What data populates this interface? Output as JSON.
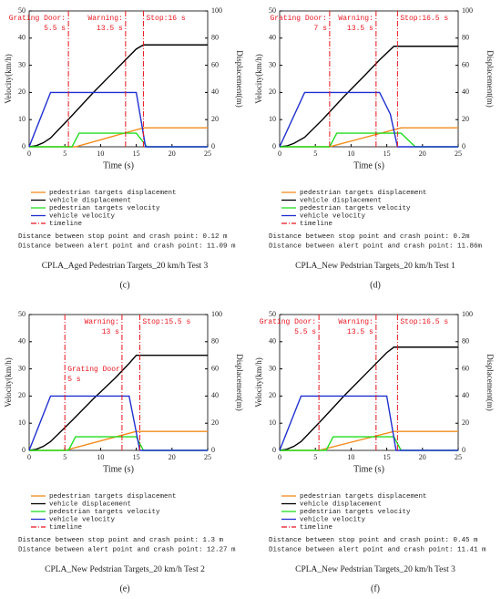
{
  "chart_data": [
    {
      "type": "line",
      "caption": "CPLA_Aged Pedestrian Targets_20 km/h Test 3",
      "label": "(c)",
      "xlabel": "Time (s)",
      "ylabel": "Velocity(km/h)",
      "y2label": "Displacement(m)",
      "xlim": [
        0,
        25
      ],
      "xticks": [
        0,
        5,
        10,
        15,
        20,
        25
      ],
      "ylim": [
        0,
        50
      ],
      "yticks": [
        0,
        10,
        20,
        30,
        40,
        50
      ],
      "y2lim": [
        0,
        100
      ],
      "y2ticks": [
        0,
        20,
        40,
        60,
        80,
        100
      ],
      "series": [
        {
          "name": "pedestrian targets displacement",
          "color": "#f28c1c",
          "axis": "y2",
          "x": [
            0,
            6.5,
            16,
            25
          ],
          "values": [
            0,
            0,
            14,
            14
          ]
        },
        {
          "name": "vehicle displacement",
          "color": "#000000",
          "axis": "y2",
          "x": [
            0,
            1,
            2,
            3,
            6,
            9,
            12,
            15,
            16,
            25
          ],
          "values": [
            0,
            0.8,
            3,
            6.5,
            23,
            40,
            56,
            72,
            75,
            75
          ]
        },
        {
          "name": "pedestrian targets velocity",
          "color": "#22dd22",
          "axis": "y",
          "x": [
            0,
            6,
            7,
            15,
            16.5,
            25
          ],
          "values": [
            0,
            0,
            5,
            5,
            0,
            0
          ]
        },
        {
          "name": "vehicle velocity",
          "color": "#1f2fd0",
          "axis": "y",
          "x": [
            0,
            3,
            15,
            16.3,
            25
          ],
          "values": [
            0,
            20,
            20,
            0,
            0
          ]
        }
      ],
      "timeline": {
        "name": "timeline",
        "color": "#e8141e",
        "values": [
          5.5,
          13.5,
          16
        ]
      },
      "annotations": [
        {
          "lines": [
            "Grating Door:",
            "5.5 s"
          ]
        },
        {
          "lines": [
            "Warning:",
            "13.5 s"
          ]
        },
        {
          "lines": [
            "Stop:16 s"
          ]
        }
      ],
      "notes": [
        "Distance between stop point and crash point: 0.12 m",
        "Distance between alert point and crash point: 11.09 m"
      ]
    },
    {
      "type": "line",
      "caption": "CPLA_New Pedstrian Targets_20 km/h Test 1",
      "label": "(d)",
      "xlabel": "Time (s)",
      "ylabel": "Velocity(km/h)",
      "y2label": "Displacement(m)",
      "xlim": [
        0,
        25
      ],
      "xticks": [
        0,
        5,
        10,
        15,
        20,
        25
      ],
      "ylim": [
        0,
        50
      ],
      "yticks": [
        0,
        10,
        20,
        30,
        40,
        50
      ],
      "y2lim": [
        0,
        100
      ],
      "y2ticks": [
        0,
        20,
        40,
        60,
        80,
        100
      ],
      "series": [
        {
          "name": "pedestrian targets displacement",
          "color": "#f28c1c",
          "axis": "y2",
          "x": [
            0,
            7,
            17,
            25
          ],
          "values": [
            0,
            0,
            14,
            14
          ]
        },
        {
          "name": "vehicle displacement",
          "color": "#000000",
          "axis": "y2",
          "x": [
            0,
            1,
            2,
            3.5,
            6,
            9,
            12,
            14,
            16,
            25
          ],
          "values": [
            0,
            0.6,
            2.5,
            7,
            20,
            37,
            53,
            64,
            74,
            74
          ]
        },
        {
          "name": "pedestrian targets velocity",
          "color": "#22dd22",
          "axis": "y",
          "x": [
            0,
            7,
            8,
            17,
            19,
            25
          ],
          "values": [
            0,
            0,
            5,
            5,
            0,
            0
          ]
        },
        {
          "name": "vehicle velocity",
          "color": "#1f2fd0",
          "axis": "y",
          "x": [
            0,
            3.5,
            14,
            15.5,
            16.5,
            25
          ],
          "values": [
            0,
            20,
            20,
            12,
            0,
            0
          ]
        }
      ],
      "timeline": {
        "name": "timeline",
        "color": "#e8141e",
        "values": [
          7,
          13.5,
          16.5
        ]
      },
      "annotations": [
        {
          "lines": [
            "Grating Door:",
            "7 s"
          ]
        },
        {
          "lines": [
            "Warning:",
            "13.5 s"
          ]
        },
        {
          "lines": [
            "Stop:16.5 s"
          ]
        }
      ],
      "notes": [
        "Distance between stop point and crash point: 0.2m",
        "Distance between alert point and crash point: 11.86m"
      ]
    },
    {
      "type": "line",
      "caption": "CPLA_New Pedstrian Targets_20 km/h Test 2",
      "label": "(e)",
      "xlabel": "Time (s)",
      "ylabel": "Velocity(km/h)",
      "y2label": "Displacement(m)",
      "xlim": [
        0,
        25
      ],
      "xticks": [
        0,
        5,
        10,
        15,
        20,
        25
      ],
      "ylim": [
        0,
        50
      ],
      "yticks": [
        0,
        10,
        20,
        30,
        40,
        50
      ],
      "y2lim": [
        0,
        100
      ],
      "y2ticks": [
        0,
        20,
        40,
        60,
        80,
        100
      ],
      "series": [
        {
          "name": "pedestrian targets displacement",
          "color": "#f28c1c",
          "axis": "y2",
          "x": [
            0,
            5,
            15,
            25
          ],
          "values": [
            0,
            0,
            14,
            14
          ]
        },
        {
          "name": "vehicle displacement",
          "color": "#000000",
          "axis": "y2",
          "x": [
            0,
            1,
            2,
            3,
            6,
            9,
            12,
            14,
            15,
            25
          ],
          "values": [
            0,
            0.8,
            3,
            6.5,
            22,
            38,
            53,
            64,
            70,
            70
          ]
        },
        {
          "name": "pedestrian targets velocity",
          "color": "#22dd22",
          "axis": "y",
          "x": [
            0,
            5.5,
            6.5,
            15,
            16,
            25
          ],
          "values": [
            0,
            0,
            5,
            5,
            0,
            0
          ]
        },
        {
          "name": "vehicle velocity",
          "color": "#1f2fd0",
          "axis": "y",
          "x": [
            0,
            3,
            14,
            15.5,
            25
          ],
          "values": [
            0,
            20,
            20,
            0,
            0
          ]
        }
      ],
      "timeline": {
        "name": "timeline",
        "color": "#e8141e",
        "values": [
          5,
          13,
          15.5
        ]
      },
      "annotations": [
        {
          "lines": [
            "Grating Door:",
            "5 s"
          ]
        },
        {
          "lines": [
            "Warning:",
            "13 s"
          ]
        },
        {
          "lines": [
            "Stop:15.5 s"
          ]
        }
      ],
      "notes": [
        "Distance between stop point and crash point: 1.3 m",
        "Distance between alert point and crash point: 12.27 m"
      ]
    },
    {
      "type": "line",
      "caption": "CPLA_New Pedstrian Targets_20 km/h Test 3",
      "label": "(f)",
      "xlabel": "Time (s)",
      "ylabel": "Velocity(km/h)",
      "y2label": "Displacement(m)",
      "xlim": [
        0,
        25
      ],
      "xticks": [
        0,
        5,
        10,
        15,
        20,
        25
      ],
      "ylim": [
        0,
        50
      ],
      "yticks": [
        0,
        10,
        20,
        30,
        40,
        50
      ],
      "y2lim": [
        0,
        100
      ],
      "y2ticks": [
        0,
        20,
        40,
        60,
        80,
        100
      ],
      "series": [
        {
          "name": "pedestrian targets displacement",
          "color": "#f28c1c",
          "axis": "y2",
          "x": [
            0,
            5.5,
            16,
            25
          ],
          "values": [
            0,
            0,
            14,
            14
          ]
        },
        {
          "name": "vehicle displacement",
          "color": "#000000",
          "axis": "y2",
          "x": [
            0,
            1,
            2,
            3,
            6,
            9,
            12,
            15,
            16,
            25
          ],
          "values": [
            0,
            0.8,
            3,
            6.5,
            23,
            40,
            56,
            72,
            76,
            76
          ]
        },
        {
          "name": "pedestrian targets velocity",
          "color": "#22dd22",
          "axis": "y",
          "x": [
            0,
            6.5,
            7.5,
            16,
            17,
            25
          ],
          "values": [
            0,
            0,
            5,
            5,
            0,
            0
          ]
        },
        {
          "name": "vehicle velocity",
          "color": "#1f2fd0",
          "axis": "y",
          "x": [
            0,
            3,
            15,
            16.3,
            25
          ],
          "values": [
            0,
            20,
            20,
            0,
            0
          ]
        }
      ],
      "timeline": {
        "name": "timeline",
        "color": "#e8141e",
        "values": [
          5.5,
          13.5,
          16.5
        ]
      },
      "annotations": [
        {
          "lines": [
            "Grating Door:",
            "5.5 s"
          ]
        },
        {
          "lines": [
            "Warning:",
            "13.5 s"
          ]
        },
        {
          "lines": [
            "Stop:16.5 s"
          ]
        }
      ],
      "notes": [
        "Distance between stop point and crash point: 0.45 m",
        "Distance between alert point and crash point: 11.41 m"
      ]
    }
  ]
}
